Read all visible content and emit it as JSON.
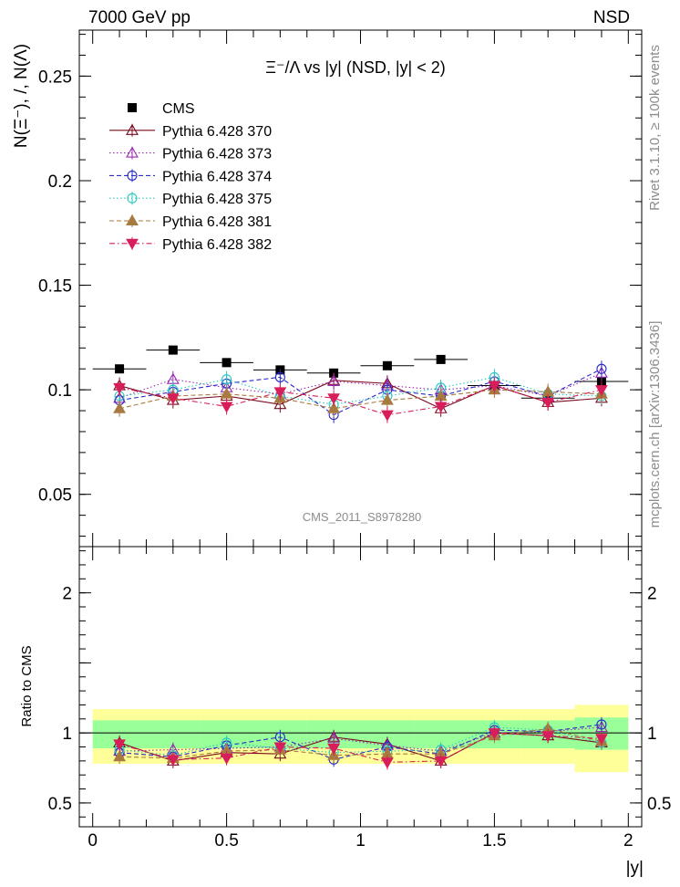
{
  "header": {
    "energy_label": "7000 GeV pp",
    "process_label": "NSD",
    "right_side_top": "Rivet 3.1.10, ≥ 100k events",
    "right_side_bottom": "mcplots.cern.ch [arXiv:1306.3436]",
    "watermark": "CMS_2011_S8978280"
  },
  "chart_data": [
    {
      "type": "scatter",
      "panel": "main",
      "title": "Ξ⁻/Λ vs |y| (NSD, |y| < 2)",
      "ylabel": "N(Ξ⁻), /, N(Λ)",
      "xlim": [
        -0.05,
        2.05
      ],
      "ylim": [
        0.025,
        0.272
      ],
      "yticks": [
        0.05,
        0.1,
        0.15,
        0.2,
        0.25
      ],
      "ytick_labels": [
        "0.05",
        "0.1",
        "0.15",
        "0.2",
        "0.25"
      ],
      "x": [
        0.1,
        0.3,
        0.5,
        0.7,
        0.9,
        1.1,
        1.3,
        1.5,
        1.7,
        1.9
      ],
      "x_bins": [
        [
          0,
          0.2
        ],
        [
          0.2,
          0.4
        ],
        [
          0.4,
          0.6
        ],
        [
          0.6,
          0.8
        ],
        [
          0.8,
          1.0
        ],
        [
          1.0,
          1.2
        ],
        [
          1.2,
          1.4
        ],
        [
          1.4,
          1.6
        ],
        [
          1.6,
          1.8
        ],
        [
          1.8,
          2.0
        ]
      ],
      "legend_placement": "top-left",
      "series": [
        {
          "name": "CMS",
          "color": "#000000",
          "marker": "square",
          "values": [
            0.11,
            0.119,
            0.113,
            0.1095,
            0.108,
            0.1115,
            0.1145,
            0.102,
            0.096,
            0.104
          ]
        },
        {
          "name": "Pythia 6.428 370",
          "color": "#7a0a1e",
          "marker": "triangle-open",
          "line": "solid",
          "values": [
            0.102,
            0.095,
            0.097,
            0.093,
            0.1045,
            0.103,
            0.091,
            0.102,
            0.094,
            0.096
          ]
        },
        {
          "name": "Pythia 6.428 373",
          "color": "#9a2ab0",
          "marker": "triangle-open",
          "line": "dotted",
          "values": [
            0.096,
            0.105,
            0.101,
            0.098,
            0.104,
            0.102,
            0.1,
            0.102,
            0.097,
            0.108
          ]
        },
        {
          "name": "Pythia 6.428 374",
          "color": "#2a2ac8",
          "marker": "circle-open",
          "line": "dashed",
          "values": [
            0.095,
            0.099,
            0.103,
            0.106,
            0.088,
            0.1,
            0.097,
            0.104,
            0.097,
            0.11
          ]
        },
        {
          "name": "Pythia 6.428 375",
          "color": "#2ac8c0",
          "marker": "circle-open",
          "line": "dotted",
          "values": [
            0.097,
            0.1,
            0.105,
            0.097,
            0.093,
            0.097,
            0.101,
            0.106,
            0.098,
            0.097
          ]
        },
        {
          "name": "Pythia 6.428 381",
          "color": "#a87a40",
          "marker": "triangle-filled",
          "line": "dashed",
          "values": [
            0.091,
            0.097,
            0.098,
            0.096,
            0.091,
            0.095,
            0.097,
            0.1,
            0.099,
            0.098
          ]
        },
        {
          "name": "Pythia 6.428 382",
          "color": "#d81e5a",
          "marker": "triangle-down-filled",
          "line": "dashdot",
          "values": [
            0.101,
            0.096,
            0.092,
            0.099,
            0.096,
            0.088,
            0.092,
            0.102,
            0.094,
            0.1
          ]
        }
      ]
    },
    {
      "type": "scatter",
      "panel": "ratio",
      "ylabel": "Ratio to CMS",
      "xlabel": "|y|",
      "xlim": [
        -0.05,
        2.05
      ],
      "ylim": [
        0.33,
        2.33
      ],
      "yticks": [
        0.5,
        1,
        1.5,
        2
      ],
      "ytick_labels": [
        "0.5",
        "1",
        "",
        "2"
      ],
      "xticks": [
        0,
        0.5,
        1,
        1.5,
        2
      ],
      "xtick_labels": [
        "0",
        "0.5",
        "1",
        "1.5",
        "2"
      ],
      "reference_line": 1,
      "band_inner": [
        [
          0.89,
          1.09
        ],
        [
          0.89,
          1.09
        ],
        [
          0.89,
          1.09
        ],
        [
          0.89,
          1.09
        ],
        [
          0.89,
          1.09
        ],
        [
          0.89,
          1.09
        ],
        [
          0.89,
          1.09
        ],
        [
          0.89,
          1.09
        ],
        [
          0.89,
          1.09
        ],
        [
          0.88,
          1.11
        ]
      ],
      "band_outer": [
        [
          0.78,
          1.17
        ],
        [
          0.78,
          1.17
        ],
        [
          0.78,
          1.17
        ],
        [
          0.78,
          1.17
        ],
        [
          0.78,
          1.17
        ],
        [
          0.78,
          1.17
        ],
        [
          0.78,
          1.17
        ],
        [
          0.78,
          1.17
        ],
        [
          0.78,
          1.17
        ],
        [
          0.72,
          1.2
        ]
      ],
      "series": [
        {
          "name": "Pythia 6.428 370",
          "values": [
            0.93,
            0.8,
            0.86,
            0.85,
            0.97,
            0.92,
            0.8,
            1.0,
            0.98,
            0.93
          ]
        },
        {
          "name": "Pythia 6.428 373",
          "values": [
            0.87,
            0.88,
            0.89,
            0.9,
            0.96,
            0.91,
            0.87,
            1.0,
            1.01,
            1.04
          ]
        },
        {
          "name": "Pythia 6.428 374",
          "values": [
            0.86,
            0.83,
            0.91,
            0.97,
            0.81,
            0.9,
            0.85,
            1.02,
            1.01,
            1.06
          ]
        },
        {
          "name": "Pythia 6.428 375",
          "values": [
            0.88,
            0.84,
            0.93,
            0.89,
            0.86,
            0.87,
            0.88,
            1.04,
            1.02,
            0.93
          ]
        },
        {
          "name": "Pythia 6.428 381",
          "values": [
            0.83,
            0.82,
            0.87,
            0.88,
            0.84,
            0.85,
            0.85,
            0.98,
            1.03,
            0.94
          ]
        },
        {
          "name": "Pythia 6.428 382",
          "values": [
            0.92,
            0.81,
            0.82,
            0.9,
            0.89,
            0.79,
            0.8,
            1.0,
            0.98,
            0.96
          ]
        }
      ]
    }
  ]
}
